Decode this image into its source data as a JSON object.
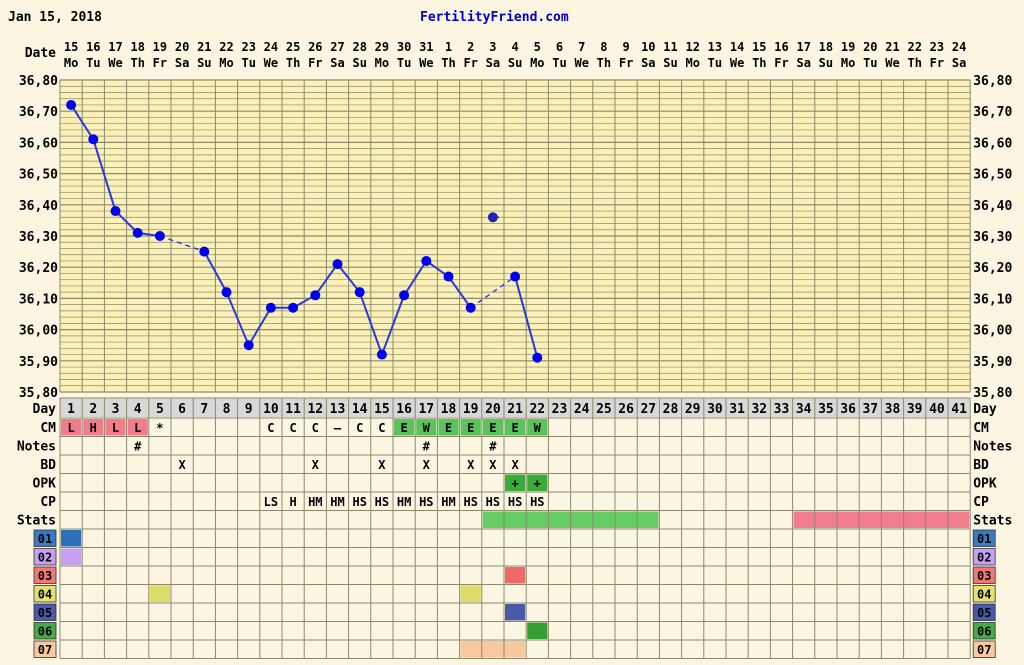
{
  "header": {
    "date": "Jan 15, 2018",
    "site": "FertilityFriend.com"
  },
  "chart_data": {
    "type": "line",
    "title": "",
    "ylim": [
      35.8,
      36.8
    ],
    "y_ticks": [
      "35,80",
      "35,90",
      "36,00",
      "36,10",
      "36,20",
      "36,30",
      "36,40",
      "36,50",
      "36,60",
      "36,70",
      "36,80"
    ],
    "date_label": "Date",
    "dates": [
      "15",
      "16",
      "17",
      "18",
      "19",
      "20",
      "21",
      "22",
      "23",
      "24",
      "25",
      "26",
      "27",
      "28",
      "29",
      "30",
      "31",
      "1",
      "2",
      "3",
      "4",
      "5",
      "6",
      "7",
      "8",
      "9",
      "10",
      "11",
      "12",
      "13",
      "14",
      "15",
      "16",
      "17",
      "18",
      "19",
      "20",
      "21",
      "22",
      "23",
      "24"
    ],
    "weekdays": [
      "Mo",
      "Tu",
      "We",
      "Th",
      "Fr",
      "Sa",
      "Su",
      "Mo",
      "Tu",
      "We",
      "Th",
      "Fr",
      "Sa",
      "Su",
      "Mo",
      "Tu",
      "We",
      "Th",
      "Fr",
      "Sa",
      "Su",
      "Mo",
      "Tu",
      "We",
      "Th",
      "Fr",
      "Sa",
      "Su",
      "Mo",
      "Tu",
      "We",
      "Th",
      "Fr",
      "Sa",
      "Su",
      "Mo",
      "Tu",
      "We",
      "Th",
      "Fr",
      "Sa"
    ],
    "day_label": "Day",
    "days": [
      "1",
      "2",
      "3",
      "4",
      "5",
      "6",
      "7",
      "8",
      "9",
      "10",
      "11",
      "12",
      "13",
      "14",
      "15",
      "16",
      "17",
      "18",
      "19",
      "20",
      "21",
      "22",
      "23",
      "24",
      "25",
      "26",
      "27",
      "28",
      "29",
      "30",
      "31",
      "32",
      "33",
      "34",
      "35",
      "36",
      "37",
      "38",
      "39",
      "40",
      "41"
    ],
    "series": [
      {
        "day": [
          1,
          2,
          3,
          4,
          5,
          7,
          8,
          9,
          10,
          11,
          12,
          13,
          14,
          15,
          16,
          17,
          18,
          19,
          21,
          22
        ],
        "temp": [
          36.72,
          36.61,
          36.38,
          36.31,
          36.3,
          36.25,
          36.12,
          35.95,
          36.07,
          36.07,
          36.11,
          36.21,
          36.12,
          35.92,
          36.11,
          36.22,
          36.17,
          36.07,
          36.17,
          35.91
        ],
        "color": "#0000ee",
        "dashed_gaps": [
          [
            5,
            7
          ],
          [
            19,
            21
          ]
        ]
      }
    ],
    "discarded_points": [
      {
        "day": 20,
        "temp": 36.36
      }
    ],
    "rows": [
      {
        "label": "CM",
        "cells": [
          {
            "day": 1,
            "text": "L",
            "bg": "#f07c8c"
          },
          {
            "day": 2,
            "text": "H",
            "bg": "#f07c8c"
          },
          {
            "day": 3,
            "text": "L",
            "bg": "#f07c8c"
          },
          {
            "day": 4,
            "text": "L",
            "bg": "#f07c8c"
          },
          {
            "day": 5,
            "text": "*"
          },
          {
            "day": 10,
            "text": "C"
          },
          {
            "day": 11,
            "text": "C"
          },
          {
            "day": 12,
            "text": "C"
          },
          {
            "day": 13,
            "text": "–"
          },
          {
            "day": 14,
            "text": "C"
          },
          {
            "day": 15,
            "text": "C"
          },
          {
            "day": 16,
            "text": "E",
            "bg": "#5cc25c"
          },
          {
            "day": 17,
            "text": "W",
            "bg": "#5cc25c"
          },
          {
            "day": 18,
            "text": "E",
            "bg": "#5cc25c"
          },
          {
            "day": 19,
            "text": "E",
            "bg": "#5cc25c"
          },
          {
            "day": 20,
            "text": "E",
            "bg": "#5cc25c"
          },
          {
            "day": 21,
            "text": "E",
            "bg": "#5cc25c"
          },
          {
            "day": 22,
            "text": "W",
            "bg": "#5cc25c"
          }
        ]
      },
      {
        "label": "Notes",
        "cells": [
          {
            "day": 4,
            "text": "#"
          },
          {
            "day": 17,
            "text": "#"
          },
          {
            "day": 20,
            "text": "#"
          }
        ]
      },
      {
        "label": "BD",
        "cells": [
          {
            "day": 6,
            "text": "X"
          },
          {
            "day": 12,
            "text": "X"
          },
          {
            "day": 15,
            "text": "X"
          },
          {
            "day": 17,
            "text": "X"
          },
          {
            "day": 19,
            "text": "X"
          },
          {
            "day": 20,
            "text": "X"
          },
          {
            "day": 21,
            "text": "X"
          }
        ]
      },
      {
        "label": "OPK",
        "cells": [
          {
            "day": 21,
            "text": "+",
            "bg": "#3aaa3a"
          },
          {
            "day": 22,
            "text": "+",
            "bg": "#3aaa3a"
          }
        ]
      },
      {
        "label": "CP",
        "cells": [
          {
            "day": 10,
            "text": "LS"
          },
          {
            "day": 11,
            "text": "H"
          },
          {
            "day": 12,
            "text": "HM"
          },
          {
            "day": 13,
            "text": "HM"
          },
          {
            "day": 14,
            "text": "HS"
          },
          {
            "day": 15,
            "text": "HS"
          },
          {
            "day": 16,
            "text": "HM"
          },
          {
            "day": 17,
            "text": "HS"
          },
          {
            "day": 18,
            "text": "HM"
          },
          {
            "day": 19,
            "text": "HS"
          },
          {
            "day": 20,
            "text": "HS"
          },
          {
            "day": 21,
            "text": "HS"
          },
          {
            "day": 22,
            "text": "HS"
          }
        ]
      },
      {
        "label": "Stats",
        "spans": [
          {
            "from": 20,
            "to": 27,
            "color": "#66cc66"
          },
          {
            "from": 34,
            "to": 41,
            "color": "#f07c8c"
          }
        ]
      },
      {
        "label": "01",
        "label_bg": "#3a79c4",
        "spans": [
          {
            "from": 1,
            "to": 1,
            "color": "#2d6fb8"
          }
        ]
      },
      {
        "label": "02",
        "label_bg": "#c8a0f0",
        "spans": [
          {
            "from": 1,
            "to": 1,
            "color": "#c8a0f0"
          }
        ]
      },
      {
        "label": "03",
        "label_bg": "#f07878",
        "spans": [
          {
            "from": 21,
            "to": 21,
            "color": "#f06868"
          }
        ]
      },
      {
        "label": "04",
        "label_bg": "#e4e070",
        "spans": [
          {
            "from": 5,
            "to": 5,
            "color": "#dcdc66"
          },
          {
            "from": 19,
            "to": 19,
            "color": "#dcdc66"
          }
        ]
      },
      {
        "label": "05",
        "label_bg": "#4a5aa8",
        "spans": [
          {
            "from": 21,
            "to": 21,
            "color": "#4a5aa8"
          }
        ]
      },
      {
        "label": "06",
        "label_bg": "#46aa46",
        "spans": [
          {
            "from": 22,
            "to": 22,
            "color": "#34a034"
          }
        ]
      },
      {
        "label": "07",
        "label_bg": "#f8c8a0",
        "spans": [
          {
            "from": 19,
            "to": 21,
            "color": "#f8c8a0"
          }
        ]
      }
    ],
    "colors": {
      "grid": "#8a8a6a",
      "plot_bg": "#fbf1b8",
      "table_bg": "#fbf5e2",
      "day_row_bg": "#d8d8d8",
      "line": "#2a3ad8"
    }
  }
}
